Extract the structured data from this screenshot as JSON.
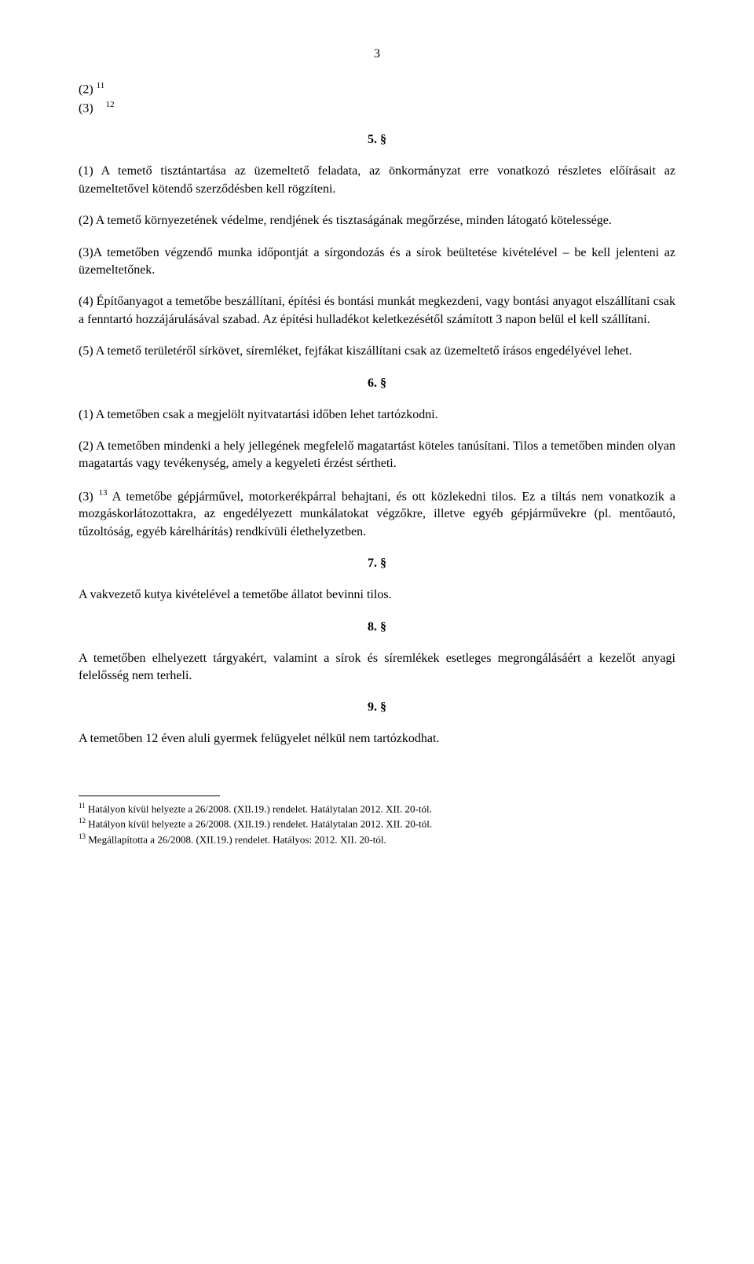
{
  "page_number": "3",
  "refs": {
    "line1_num": "(2)",
    "line1_sup": "11",
    "line2_num": "(3)",
    "line2_sup": "12"
  },
  "sections": {
    "s5": "5. §",
    "s6": "6. §",
    "s7": "7. §",
    "s8": "8. §",
    "s9": "9. §"
  },
  "paras": {
    "p5_1": "(1) A temető tisztántartása az üzemeltető feladata, az önkormányzat erre vonatkozó részletes előírásait az üzemeltetővel kötendő szerződésben kell rögzíteni.",
    "p5_2": "(2) A temető környezetének védelme, rendjének és tisztaságának megőrzése, minden látogató kötelessége.",
    "p5_3": "(3)A temetőben végzendő munka időpontját a sírgondozás és a sírok beültetése kivételével – be kell jelenteni az üzemeltetőnek.",
    "p5_4": "(4) Építőanyagot a temetőbe beszállítani, építési és bontási munkát megkezdeni, vagy bontási anyagot elszállítani csak a fenntartó hozzájárulásával szabad. Az építési hulladékot keletkezésétől számított 3 napon belül el kell szállítani.",
    "p5_5": "(5) A temető területéről sírkövet, síremléket, fejfákat kiszállítani csak az üzemeltető írásos engedélyével lehet.",
    "p6_1": "(1) A temetőben csak a megjelölt nyitvatartási időben lehet tartózkodni.",
    "p6_2": "(2) A temetőben mindenki a hely jellegének megfelelő magatartást köteles tanúsítani. Tilos a temetőben minden olyan magatartás vagy tevékenység, amely a kegyeleti érzést sértheti.",
    "p6_3_prefix": "(3) ",
    "p6_3_sup": "13",
    "p6_3_body": " A temetőbe gépjárművel, motorkerékpárral behajtani, és ott közlekedni tilos. Ez a tiltás nem vonatkozik a mozgáskorlátozottakra, az engedélyezett munkálatokat végzőkre, illetve egyéb gépjárművekre (pl. mentőautó, tűzoltóság, egyéb kárelhárítás) rendkívüli élethelyzetben.",
    "p7_1": "A vakvezető kutya kivételével a temetőbe állatot bevinni tilos.",
    "p8_1": "A temetőben elhelyezett tárgyakért, valamint a sírok és síremlékek esetleges megrongálásáért a kezelőt anyagi felelősség nem terheli.",
    "p9_1": "A temetőben 12 éven aluli gyermek felügyelet nélkül nem tartózkodhat."
  },
  "footnotes": {
    "f11_sup": "11",
    "f11": " Hatályon kívül helyezte a 26/2008. (XII.19.) rendelet. Hatálytalan 2012. XII. 20-tól.",
    "f12_sup": "12",
    "f12": " Hatályon kívül helyezte a 26/2008. (XII.19.) rendelet. Hatálytalan 2012. XII. 20-tól.",
    "f13_sup": "13",
    "f13": " Megállapította a 26/2008. (XII.19.) rendelet. Hatályos: 2012. XII. 20-tól."
  },
  "colors": {
    "text": "#000000",
    "background": "#ffffff"
  },
  "typography": {
    "body_font": "Times New Roman",
    "body_size_pt": 12,
    "footnote_size_pt": 10
  }
}
